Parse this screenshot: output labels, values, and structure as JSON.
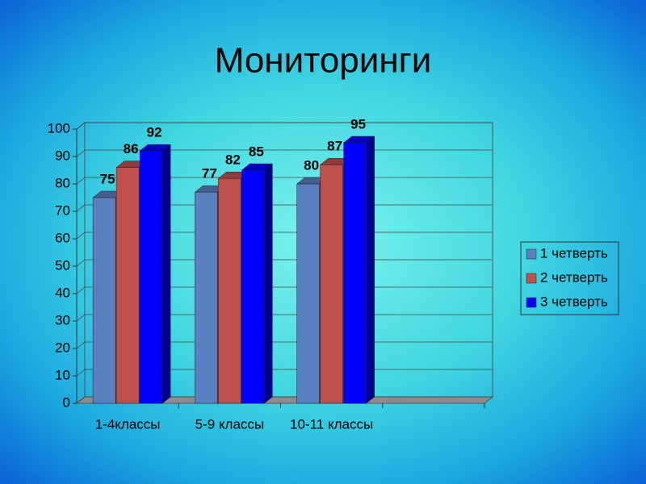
{
  "chart_data": {
    "type": "bar",
    "title": "Мониторинги",
    "categories": [
      "1-4классы",
      "5-9 классы",
      "10-11 классы",
      null
    ],
    "series": [
      {
        "name": "1 четверть",
        "color": "#5a80c0",
        "values": [
          75,
          77,
          80,
          null
        ]
      },
      {
        "name": "2 четверть",
        "color": "#c0504d",
        "values": [
          86,
          82,
          87,
          null
        ]
      },
      {
        "name": "3 четверть",
        "color": "#0000ff",
        "values": [
          92,
          85,
          95,
          null
        ]
      }
    ],
    "ylim": [
      0,
      100
    ],
    "yticks": [
      0,
      10,
      20,
      30,
      40,
      50,
      60,
      70,
      80,
      90,
      100
    ],
    "grid": true,
    "legend": "right"
  }
}
